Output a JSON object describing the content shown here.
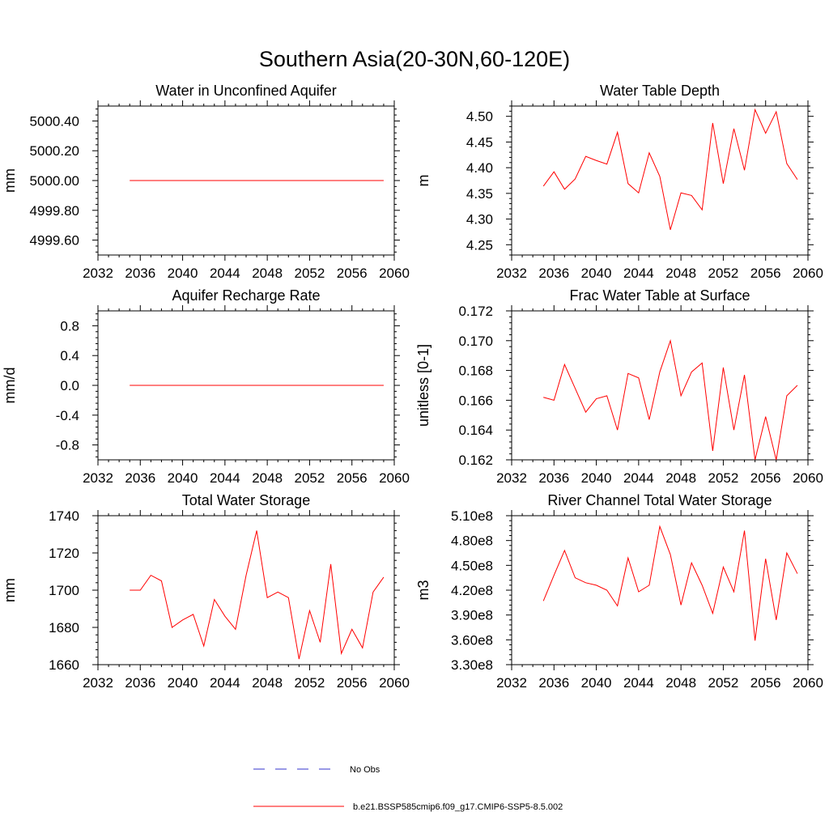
{
  "figure": {
    "title": "Southern Asia(20-30N,60-120E)"
  },
  "legend": {
    "items": [
      {
        "label": "No Obs",
        "color": "#3333cc",
        "style": "dashed"
      },
      {
        "label": "b.e21.BSSP585cmip6.f09_g17.CMIP6-SSP5-8.5.002",
        "color": "#ff0000",
        "style": "solid"
      }
    ]
  },
  "chart_data": [
    {
      "type": "line",
      "title": "Water in Unconfined Aquifer",
      "xlabel": "",
      "ylabel": "mm",
      "xlim": [
        2032,
        2060
      ],
      "ylim": [
        4999.5,
        5000.5
      ],
      "xticks": [
        2032,
        2036,
        2040,
        2044,
        2048,
        2052,
        2056,
        2060
      ],
      "xtick_labels": [
        "2032",
        "2036",
        "2040",
        "2044",
        "2048",
        "2052",
        "2056",
        "2060"
      ],
      "yticks": [
        4999.6,
        4999.8,
        5000.0,
        5000.2,
        5000.4
      ],
      "ytick_labels": [
        "4999.60",
        "4999.80",
        "5000.00",
        "5000.20",
        "5000.40"
      ],
      "grid": false,
      "series": [
        {
          "color": "#ff0000",
          "x": [
            2035,
            2036,
            2037,
            2038,
            2039,
            2040,
            2041,
            2042,
            2043,
            2044,
            2045,
            2046,
            2047,
            2048,
            2049,
            2050,
            2051,
            2052,
            2053,
            2054,
            2055,
            2056,
            2057,
            2058,
            2059
          ],
          "values": [
            5000.0,
            5000.0,
            5000.0,
            5000.0,
            5000.0,
            5000.0,
            5000.0,
            5000.0,
            5000.0,
            5000.0,
            5000.0,
            5000.0,
            5000.0,
            5000.0,
            5000.0,
            5000.0,
            5000.0,
            5000.0,
            5000.0,
            5000.0,
            5000.0,
            5000.0,
            5000.0,
            5000.0,
            5000.0
          ]
        }
      ]
    },
    {
      "type": "line",
      "title": "Water Table Depth",
      "xlabel": "",
      "ylabel": "m",
      "xlim": [
        2032,
        2060
      ],
      "ylim": [
        4.23,
        4.52
      ],
      "xticks": [
        2032,
        2036,
        2040,
        2044,
        2048,
        2052,
        2056,
        2060
      ],
      "xtick_labels": [
        "2032",
        "2036",
        "2040",
        "2044",
        "2048",
        "2052",
        "2056",
        "2060"
      ],
      "yticks": [
        4.25,
        4.3,
        4.35,
        4.4,
        4.45,
        4.5
      ],
      "ytick_labels": [
        "4.25",
        "4.30",
        "4.35",
        "4.40",
        "4.45",
        "4.50"
      ],
      "grid": false,
      "series": [
        {
          "color": "#ff0000",
          "x": [
            2035,
            2036,
            2037,
            2038,
            2039,
            2040,
            2041,
            2042,
            2043,
            2044,
            2045,
            2046,
            2047,
            2048,
            2049,
            2050,
            2051,
            2052,
            2053,
            2054,
            2055,
            2056,
            2057,
            2058,
            2059
          ],
          "values": [
            4.364,
            4.392,
            4.358,
            4.378,
            4.422,
            4.414,
            4.407,
            4.469,
            4.369,
            4.351,
            4.429,
            4.383,
            4.279,
            4.351,
            4.346,
            4.318,
            4.487,
            4.369,
            4.476,
            4.395,
            4.513,
            4.467,
            4.509,
            4.408,
            4.377
          ]
        }
      ]
    },
    {
      "type": "line",
      "title": "Aquifer Recharge Rate",
      "xlabel": "",
      "ylabel": "mm/d",
      "xlim": [
        2032,
        2060
      ],
      "ylim": [
        -1.0,
        1.0
      ],
      "xticks": [
        2032,
        2036,
        2040,
        2044,
        2048,
        2052,
        2056,
        2060
      ],
      "xtick_labels": [
        "2032",
        "2036",
        "2040",
        "2044",
        "2048",
        "2052",
        "2056",
        "2060"
      ],
      "yticks": [
        -0.8,
        -0.4,
        0.0,
        0.4,
        0.8
      ],
      "ytick_labels": [
        "-0.8",
        "-0.4",
        "0.0",
        "0.4",
        "0.8"
      ],
      "grid": false,
      "series": [
        {
          "color": "#ff0000",
          "x": [
            2035,
            2036,
            2037,
            2038,
            2039,
            2040,
            2041,
            2042,
            2043,
            2044,
            2045,
            2046,
            2047,
            2048,
            2049,
            2050,
            2051,
            2052,
            2053,
            2054,
            2055,
            2056,
            2057,
            2058,
            2059
          ],
          "values": [
            0,
            0,
            0,
            0,
            0,
            0,
            0,
            0,
            0,
            0,
            0,
            0,
            0,
            0,
            0,
            0,
            0,
            0,
            0,
            0,
            0,
            0,
            0,
            0,
            0
          ]
        }
      ]
    },
    {
      "type": "line",
      "title": "Frac Water Table at Surface",
      "xlabel": "",
      "ylabel": "unitless [0-1]",
      "xlim": [
        2032,
        2060
      ],
      "ylim": [
        0.162,
        0.172
      ],
      "xticks": [
        2032,
        2036,
        2040,
        2044,
        2048,
        2052,
        2056,
        2060
      ],
      "xtick_labels": [
        "2032",
        "2036",
        "2040",
        "2044",
        "2048",
        "2052",
        "2056",
        "2060"
      ],
      "yticks": [
        0.162,
        0.164,
        0.166,
        0.168,
        0.17,
        0.172
      ],
      "ytick_labels": [
        "0.162",
        "0.164",
        "0.166",
        "0.168",
        "0.170",
        "0.172"
      ],
      "grid": false,
      "series": [
        {
          "color": "#ff0000",
          "x": [
            2035,
            2036,
            2037,
            2038,
            2039,
            2040,
            2041,
            2042,
            2043,
            2044,
            2045,
            2046,
            2047,
            2048,
            2049,
            2050,
            2051,
            2052,
            2053,
            2054,
            2055,
            2056,
            2057,
            2058,
            2059
          ],
          "values": [
            0.1662,
            0.166,
            0.1684,
            0.1668,
            0.1652,
            0.1661,
            0.1663,
            0.164,
            0.1678,
            0.1675,
            0.1647,
            0.1679,
            0.17,
            0.1663,
            0.1679,
            0.1685,
            0.1626,
            0.1682,
            0.164,
            0.1677,
            0.162,
            0.1649,
            0.162,
            0.1663,
            0.167
          ]
        }
      ]
    },
    {
      "type": "line",
      "title": "Total Water Storage",
      "xlabel": "",
      "ylabel": "mm",
      "xlim": [
        2032,
        2060
      ],
      "ylim": [
        1660,
        1740
      ],
      "xticks": [
        2032,
        2036,
        2040,
        2044,
        2048,
        2052,
        2056,
        2060
      ],
      "xtick_labels": [
        "2032",
        "2036",
        "2040",
        "2044",
        "2048",
        "2052",
        "2056",
        "2060"
      ],
      "yticks": [
        1660,
        1680,
        1700,
        1720,
        1740
      ],
      "ytick_labels": [
        "1660",
        "1680",
        "1700",
        "1720",
        "1740"
      ],
      "grid": false,
      "series": [
        {
          "color": "#ff0000",
          "x": [
            2035,
            2036,
            2037,
            2038,
            2039,
            2040,
            2041,
            2042,
            2043,
            2044,
            2045,
            2046,
            2047,
            2048,
            2049,
            2050,
            2051,
            2052,
            2053,
            2054,
            2055,
            2056,
            2057,
            2058,
            2059
          ],
          "values": [
            1700,
            1700,
            1708,
            1705,
            1680,
            1684,
            1687,
            1670,
            1695,
            1686,
            1679,
            1708,
            1732,
            1696,
            1699,
            1696,
            1663,
            1689,
            1672,
            1714,
            1666,
            1679,
            1669,
            1699,
            1707
          ]
        }
      ]
    },
    {
      "type": "line",
      "title": "River Channel Total Water Storage",
      "xlabel": "",
      "ylabel": "m3",
      "xlim": [
        2032,
        2060
      ],
      "ylim": [
        330000000,
        510000000
      ],
      "xticks": [
        2032,
        2036,
        2040,
        2044,
        2048,
        2052,
        2056,
        2060
      ],
      "xtick_labels": [
        "2032",
        "2036",
        "2040",
        "2044",
        "2048",
        "2052",
        "2056",
        "2060"
      ],
      "yticks": [
        330000000,
        360000000,
        390000000,
        420000000,
        450000000,
        480000000,
        510000000
      ],
      "ytick_labels": [
        "3.30e8",
        "3.60e8",
        "3.90e8",
        "4.20e8",
        "4.50e8",
        "4.80e8",
        "5.10e8"
      ],
      "grid": false,
      "series": [
        {
          "color": "#ff0000",
          "x": [
            2035,
            2036,
            2037,
            2038,
            2039,
            2040,
            2041,
            2042,
            2043,
            2044,
            2045,
            2046,
            2047,
            2048,
            2049,
            2050,
            2051,
            2052,
            2053,
            2054,
            2055,
            2056,
            2057,
            2058,
            2059
          ],
          "values": [
            407000000,
            438000000,
            468000000,
            435000000,
            429000000,
            426000000,
            420000000,
            401000000,
            459000000,
            418000000,
            426000000,
            497000000,
            463000000,
            402000000,
            453000000,
            426000000,
            392000000,
            448000000,
            418000000,
            492000000,
            359000000,
            458000000,
            384000000,
            465000000,
            440000000
          ]
        }
      ]
    }
  ]
}
